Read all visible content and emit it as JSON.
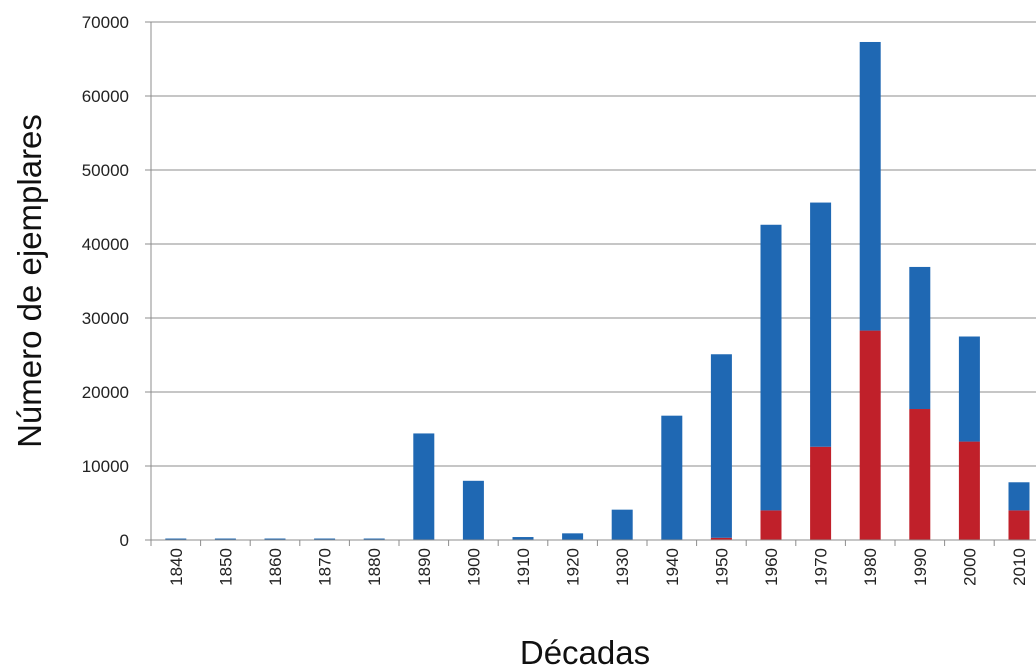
{
  "chart_data": {
    "type": "bar",
    "stacked": true,
    "title": "",
    "xlabel": "Décadas",
    "ylabel": "Número de ejemplares",
    "ylim": [
      0,
      70000
    ],
    "yticks": [
      0,
      10000,
      20000,
      30000,
      40000,
      50000,
      60000,
      70000
    ],
    "grid": "horizontal",
    "legend": "none",
    "categories": [
      "1840",
      "1850",
      "1860",
      "1870",
      "1880",
      "1890",
      "1900",
      "1910",
      "1920",
      "1930",
      "1940",
      "1950",
      "1960",
      "1970",
      "1980",
      "1990",
      "2000",
      "2010"
    ],
    "series": [
      {
        "color": "#c0202a",
        "values": [
          0,
          0,
          0,
          0,
          0,
          0,
          0,
          0,
          0,
          0,
          0,
          300,
          4000,
          12600,
          28300,
          17700,
          13300,
          4000
        ]
      },
      {
        "color": "#1f68b3",
        "values": [
          200,
          200,
          200,
          200,
          200,
          14400,
          8000,
          400,
          900,
          4100,
          16800,
          24800,
          38600,
          33000,
          39000,
          19200,
          14200,
          3800
        ]
      }
    ]
  }
}
